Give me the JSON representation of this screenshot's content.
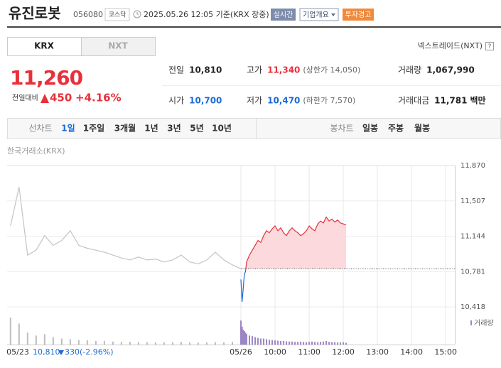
{
  "header": {
    "name": "유진로봇",
    "code": "056080",
    "market": "코스닥",
    "timestamp": "2025.05.26 12:05 기준(KRX 장중)",
    "realtime": "실시간",
    "overview": "기업개요",
    "warning": "투자경고"
  },
  "tabs": [
    "KRX",
    "NXT"
  ],
  "nxt_link": "넥스트레이드(NXT)",
  "help": "?",
  "price": {
    "current": "11,260",
    "change_label": "전일대비",
    "change": "450",
    "change_pct": "+4.16%"
  },
  "stats": [
    [
      {
        "label": "전일",
        "value": "10,810"
      },
      {
        "label": "고가",
        "value": "11,340",
        "note": "(상한가 14,050)",
        "color": "#e8303a"
      },
      {
        "label": "거래량",
        "value": "1,067,990"
      }
    ],
    [
      {
        "label": "시가",
        "value": "10,700",
        "color": "#1c6bd6"
      },
      {
        "label": "저가",
        "value": "10,470",
        "note": "(하한가 7,570)",
        "color": "#1c6bd6"
      },
      {
        "label": "거래대금",
        "value": "11,781",
        "unit": "백만"
      }
    ]
  ],
  "periods": {
    "line_label": "선차트",
    "line": [
      "1일",
      "1주일",
      "3개월",
      "1년",
      "3년",
      "5년",
      "10년"
    ],
    "selected_index": 0,
    "candle_label": "봉차트",
    "candle": [
      "일봉",
      "주봉",
      "월봉"
    ]
  },
  "source": "한국거래소(KRX)",
  "prev_day": {
    "close": "10,810",
    "change": "330",
    "change_pct": "(-2.96%)"
  },
  "chart_data": {
    "type": "line",
    "ylim": [
      10418,
      11870
    ],
    "yticks": [
      {
        "value": 10418,
        "label": "10,418"
      },
      {
        "value": 10781,
        "label": "10,781"
      },
      {
        "value": 11144,
        "label": "11,144"
      },
      {
        "value": 11507,
        "label": "11,507"
      },
      {
        "value": 11870,
        "label": "11,870"
      }
    ],
    "xlim": [
      -411,
      376
    ],
    "xticks": [
      {
        "value": -390,
        "label": "05/23"
      },
      {
        "value": 0,
        "label": "05/26"
      },
      {
        "value": 60,
        "label": "10:00"
      },
      {
        "value": 120,
        "label": "11:00"
      },
      {
        "value": 180,
        "label": "12:00"
      },
      {
        "value": 240,
        "label": "13:00"
      },
      {
        "value": 300,
        "label": "14:00"
      },
      {
        "value": 360,
        "label": "15:00"
      }
    ],
    "grid": true,
    "baseline": 10810,
    "volume_legend": "거래량",
    "volume_legend_color": "#9b86c7",
    "series": [
      {
        "color": "#c4c4c4",
        "volume_color": "#bdbdbd",
        "x": [
          -405,
          -390,
          -375,
          -360,
          -345,
          -330,
          -315,
          -300,
          -285,
          -270,
          -255,
          -240,
          -225,
          -210,
          -195,
          -180,
          -165,
          -150,
          -135,
          -120,
          -105,
          -90,
          -75,
          -60,
          -45,
          -30,
          -15,
          0
        ],
        "values": [
          11250,
          11650,
          10950,
          11000,
          11150,
          11050,
          11100,
          11200,
          11050,
          11020,
          11000,
          10980,
          10950,
          10920,
          10900,
          10930,
          10900,
          10910,
          10880,
          10900,
          10950,
          10880,
          10860,
          10900,
          10980,
          10900,
          10850,
          10810
        ],
        "volume": [
          90000,
          70000,
          40000,
          30000,
          35000,
          25000,
          20000,
          18000,
          15000,
          14000,
          12000,
          12000,
          10000,
          9000,
          9000,
          8000,
          8000,
          7000,
          7000,
          8000,
          9000,
          7000,
          6000,
          7000,
          8000,
          7000,
          9000,
          15000
        ]
      },
      {
        "color": "#e8303a",
        "color_below": "#1c6bd6",
        "fill": "#fbd9dc",
        "volume_color": "#9b86c7",
        "x": [
          0,
          2,
          4,
          6,
          8,
          10,
          15,
          20,
          25,
          30,
          35,
          40,
          45,
          50,
          55,
          60,
          65,
          70,
          75,
          80,
          85,
          90,
          95,
          100,
          105,
          110,
          115,
          120,
          125,
          130,
          135,
          140,
          145,
          150,
          155,
          160,
          165,
          170,
          175,
          180,
          185
        ],
        "values": [
          10700,
          10470,
          10600,
          10750,
          10780,
          10880,
          10950,
          11000,
          11050,
          11100,
          11080,
          11150,
          11200,
          11180,
          11220,
          11250,
          11200,
          11230,
          11180,
          11150,
          11200,
          11230,
          11200,
          11180,
          11150,
          11170,
          11200,
          11250,
          11220,
          11200,
          11270,
          11300,
          11280,
          11340,
          11300,
          11320,
          11290,
          11310,
          11280,
          11270,
          11260
        ],
        "volume": [
          80000,
          60000,
          50000,
          45000,
          40000,
          35000,
          30000,
          28000,
          25000,
          22000,
          20000,
          20000,
          18000,
          16000,
          15000,
          14000,
          13000,
          12000,
          12000,
          11000,
          10000,
          10000,
          9000,
          9000,
          10000,
          9000,
          8000,
          9000,
          10000,
          9000,
          8000,
          9000,
          10000,
          12000,
          9000,
          8000,
          8000,
          7000,
          7000,
          8000,
          6000
        ]
      }
    ]
  }
}
